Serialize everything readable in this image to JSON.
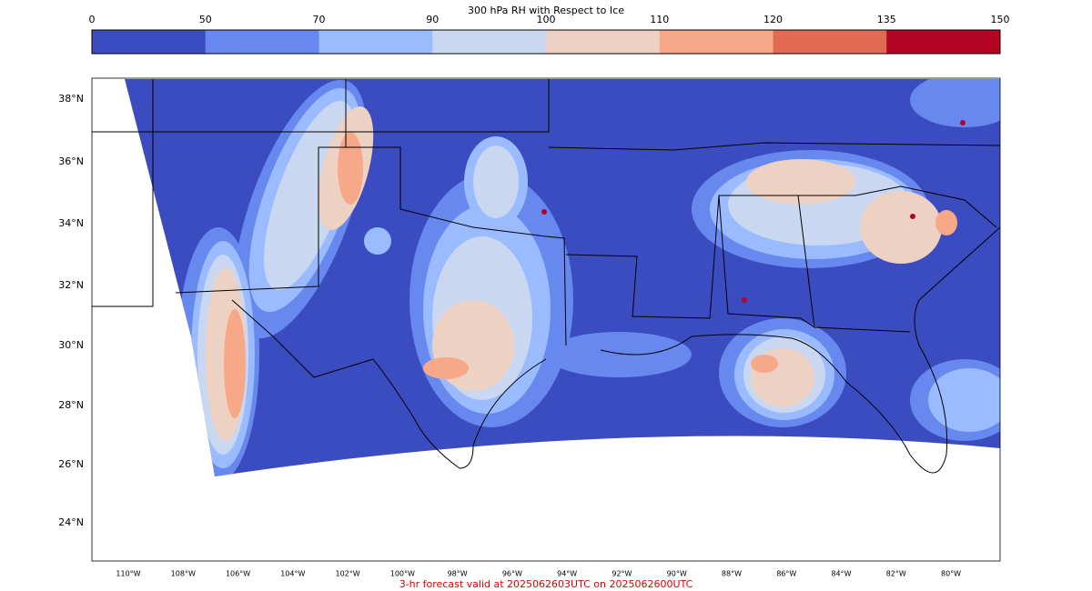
{
  "colorbar": {
    "title": "300 hPa RH with Respect to Ice",
    "ticks": [
      0,
      50,
      70,
      90,
      100,
      110,
      120,
      135,
      150
    ],
    "colors": [
      "#3b4cc0",
      "#6788ee",
      "#9abbff",
      "#c9d7f0",
      "#edd1c2",
      "#f7a889",
      "#e26952",
      "#b40426"
    ]
  },
  "map": {
    "lat_labels": [
      "38°N",
      "36°N",
      "34°N",
      "32°N",
      "30°N",
      "28°N",
      "26°N",
      "24°N"
    ],
    "lon_labels": [
      "110°W",
      "108°W",
      "106°W",
      "104°W",
      "102°W",
      "100°W",
      "98°W",
      "96°W",
      "94°W",
      "92°W",
      "90°W",
      "88°W",
      "86°W",
      "84°W",
      "82°W",
      "80°W"
    ]
  },
  "footer": "3-hr forecast valid at 2025062603UTC on 2025062600UTC"
}
